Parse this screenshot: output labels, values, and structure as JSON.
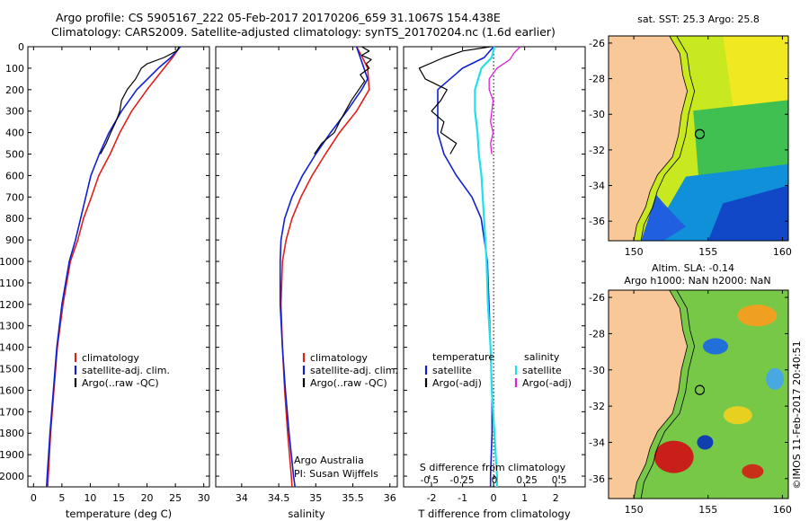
{
  "header": {
    "title_line1": "Argo profile: CS 5905167_222 05-Feb-2017 20170206_659 31.1067S 154.438E",
    "title_line2": "Climatology: CARS2009. Satellite-adjusted climatology: synTS_20170204.nc (1.6d earlier)"
  },
  "colors": {
    "climatology": "#e0201a",
    "satellite": "#1020d0",
    "argo": "#000000",
    "sal_satellite": "#20e0e8",
    "sal_argo": "#e020d8",
    "land": "#f8c898"
  },
  "panel_temp": {
    "xlabel": "temperature (deg C)",
    "xticks": [
      "0",
      "5",
      "10",
      "15",
      "20",
      "25",
      "30"
    ],
    "legend": [
      "climatology",
      "satellite-adj. clim.",
      "Argo(..raw -QC)"
    ]
  },
  "panel_sal": {
    "xlabel": "salinity",
    "xticks": [
      "34",
      "34.5",
      "35",
      "35.5",
      "36"
    ],
    "legend": [
      "climatology",
      "satellite-adj. clim.",
      "Argo(..raw -QC)"
    ],
    "note1": "Argo Australia",
    "note2": "PI: Susan Wijffels"
  },
  "panel_diff": {
    "xlabel": "T difference from climatology",
    "top_label": "S difference from climatology",
    "top_ticks": [
      "-0.5",
      "-0.25",
      "0",
      "0.25",
      "0.5"
    ],
    "xticks": [
      "-2",
      "-1",
      "0",
      "1",
      "2"
    ],
    "legend_head_t": "temperature",
    "legend_head_s": "salinity",
    "legend_t": [
      "satellite",
      "Argo(-adj)"
    ],
    "legend_s": [
      "satellite",
      "Argo(-adj)"
    ]
  },
  "depth_ticks": [
    "0",
    "100",
    "200",
    "300",
    "400",
    "500",
    "600",
    "700",
    "800",
    "900",
    "1000",
    "1100",
    "1200",
    "1300",
    "1400",
    "1500",
    "1600",
    "1700",
    "1800",
    "1900",
    "2000"
  ],
  "map_sst": {
    "title": "sat. SST: 25.3  Argo: 25.8",
    "yticks": [
      "-26",
      "-28",
      "-30",
      "-32",
      "-34",
      "-36"
    ],
    "xticks": [
      "150",
      "155",
      "160"
    ]
  },
  "map_sla": {
    "title1": "Altim. SLA: -0.14",
    "title2": "Argo h1000: NaN  h2000: NaN",
    "yticks": [
      "-26",
      "-28",
      "-30",
      "-32",
      "-34",
      "-36"
    ],
    "xticks": [
      "150",
      "155",
      "160"
    ]
  },
  "credit": "©IMOS 11-Feb-2017 20:40:51",
  "chart_data": [
    {
      "type": "line",
      "xlabel": "temperature (deg C)",
      "xlim": [
        -1,
        31
      ],
      "ylim": [
        2050,
        0
      ],
      "series": [
        {
          "name": "climatology",
          "depth": [
            0,
            50,
            100,
            200,
            300,
            400,
            500,
            600,
            700,
            800,
            900,
            1000,
            1200,
            1400,
            1600,
            1800,
            2000,
            2050
          ],
          "values": [
            25.8,
            24.5,
            23.0,
            20.0,
            17.3,
            15.2,
            13.5,
            11.5,
            10.2,
            8.8,
            7.8,
            6.5,
            5.2,
            4.2,
            3.6,
            3.0,
            2.6,
            2.5
          ]
        },
        {
          "name": "satellite-adj. clim.",
          "depth": [
            0,
            50,
            100,
            200,
            300,
            400,
            500,
            600,
            700,
            800,
            900,
            1000,
            1200,
            1400,
            1600,
            1800,
            2000,
            2050
          ],
          "values": [
            25.9,
            24.2,
            22.0,
            18.2,
            15.5,
            13.3,
            11.6,
            10.1,
            9.2,
            8.3,
            7.4,
            6.3,
            5.0,
            4.1,
            3.5,
            2.9,
            2.4,
            2.3
          ]
        },
        {
          "name": "Argo(..raw -QC)",
          "depth": [
            0,
            20,
            50,
            80,
            100,
            150,
            200,
            250,
            300,
            350,
            400,
            450,
            500
          ],
          "values": [
            25.7,
            25.2,
            23.0,
            20.0,
            19.0,
            18.0,
            16.5,
            15.5,
            15.2,
            14.5,
            13.6,
            12.8,
            11.8
          ]
        }
      ]
    },
    {
      "type": "line",
      "xlabel": "salinity",
      "xlim": [
        33.65,
        36.1
      ],
      "ylim": [
        2050,
        0
      ],
      "series": [
        {
          "name": "climatology",
          "depth": [
            0,
            50,
            100,
            200,
            300,
            400,
            500,
            600,
            700,
            800,
            900,
            1000,
            1200,
            1400,
            1600,
            1800,
            2000,
            2050
          ],
          "values": [
            35.55,
            35.63,
            35.7,
            35.72,
            35.55,
            35.32,
            35.13,
            34.95,
            34.8,
            34.68,
            34.6,
            34.55,
            34.53,
            34.55,
            34.58,
            34.62,
            34.67,
            34.68
          ]
        },
        {
          "name": "satellite-adj. clim.",
          "depth": [
            0,
            50,
            100,
            150,
            200,
            300,
            400,
            500,
            600,
            700,
            800,
            900,
            1000,
            1200,
            1400,
            1600,
            1800,
            2000,
            2050
          ],
          "values": [
            35.55,
            35.6,
            35.65,
            35.7,
            35.62,
            35.42,
            35.2,
            35.0,
            34.82,
            34.68,
            34.58,
            34.53,
            34.52,
            34.52,
            34.55,
            34.59,
            34.64,
            34.7,
            34.72
          ]
        },
        {
          "name": "Argo(..raw -QC)",
          "depth": [
            0,
            20,
            40,
            60,
            80,
            100,
            130,
            160,
            200,
            250,
            300,
            350,
            400,
            450,
            500
          ],
          "values": [
            35.62,
            35.72,
            35.62,
            35.75,
            35.68,
            35.72,
            35.6,
            35.66,
            35.58,
            35.48,
            35.4,
            35.32,
            35.25,
            35.08,
            34.98
          ]
        }
      ]
    },
    {
      "type": "line",
      "xlabel": "T difference from climatology",
      "top_label": "S difference from climatology",
      "xlim": [
        -2.9,
        2.95
      ],
      "s_lim": [
        -0.7,
        0.7
      ],
      "ylim": [
        2050,
        0
      ],
      "series": [
        {
          "name": "temperature satellite",
          "depth": [
            0,
            50,
            100,
            200,
            300,
            400,
            500,
            600,
            700,
            800,
            900,
            1000,
            1200,
            1400,
            1600,
            1800,
            2000,
            2050
          ],
          "values": [
            0.0,
            -0.3,
            -1.0,
            -1.8,
            -1.8,
            -1.8,
            -1.6,
            -1.2,
            -0.7,
            -0.4,
            -0.3,
            -0.2,
            -0.15,
            -0.1,
            -0.05,
            -0.05,
            -0.1,
            -0.1
          ]
        },
        {
          "name": "temperature Argo(-adj)",
          "depth": [
            0,
            20,
            50,
            100,
            150,
            200,
            250,
            300,
            350,
            400,
            450,
            500
          ],
          "values": [
            -0.1,
            -1.0,
            -1.6,
            -2.4,
            -2.2,
            -1.5,
            -1.7,
            -2.0,
            -1.6,
            -1.7,
            -1.2,
            -1.4
          ]
        },
        {
          "name": "salinity satellite",
          "depth": [
            0,
            50,
            100,
            200,
            300,
            400,
            500,
            600,
            700,
            800,
            900,
            1000,
            1200,
            1400,
            1600,
            1800,
            2000,
            2050
          ],
          "values": [
            0.0,
            -0.02,
            -0.1,
            -0.15,
            -0.15,
            -0.13,
            -0.12,
            -0.1,
            -0.09,
            -0.08,
            -0.07,
            -0.06,
            -0.05,
            -0.03,
            -0.02,
            0.0,
            0.02,
            0.02
          ]
        },
        {
          "name": "salinity Argo(-adj)",
          "depth": [
            0,
            30,
            60,
            100,
            150,
            200,
            250,
            300,
            350,
            400,
            450,
            500
          ],
          "values": [
            0.2,
            0.15,
            0.12,
            0.02,
            -0.04,
            -0.04,
            -0.01,
            -0.02,
            -0.03,
            -0.01,
            -0.03,
            -0.02
          ]
        }
      ]
    }
  ]
}
